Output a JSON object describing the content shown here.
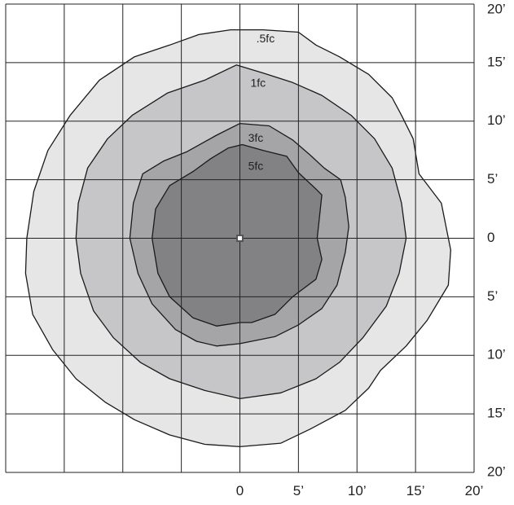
{
  "chart_data": {
    "type": "contour",
    "title": "",
    "xlabel": "",
    "ylabel": "",
    "xlim": [
      -20,
      20
    ],
    "ylim": [
      -20,
      20
    ],
    "grid": true,
    "grid_step": 5,
    "x_tick_labels": [
      {
        "value": 0,
        "label": "0"
      },
      {
        "value": 5,
        "label": "5’"
      },
      {
        "value": 10,
        "label": "10’"
      },
      {
        "value": 15,
        "label": "15’"
      },
      {
        "value": 20,
        "label": "20’"
      }
    ],
    "y_tick_labels": [
      {
        "value": 20,
        "label": "20’"
      },
      {
        "value": 15,
        "label": "15’"
      },
      {
        "value": 10,
        "label": "10’"
      },
      {
        "value": 5,
        "label": "5’"
      },
      {
        "value": 0,
        "label": "0"
      },
      {
        "value": -5,
        "label": "5’"
      },
      {
        "value": -10,
        "label": "10’"
      },
      {
        "value": -15,
        "label": "15’"
      },
      {
        "value": -20,
        "label": "20’"
      }
    ],
    "fixture_location": [
      0,
      0
    ],
    "colors": {
      "grid": "#222222",
      "outline": "#1a1a1a",
      "fixture": "#555555",
      "background": "#ffffff"
    },
    "contours": [
      {
        "label": ".5fc",
        "label_at": [
          1.4,
          17.0
        ],
        "fill": "#e6e6e7",
        "points": [
          [
            -0.8,
            17.8
          ],
          [
            2,
            17.8
          ],
          [
            5,
            17.6
          ],
          [
            6.5,
            16.5
          ],
          [
            8.5,
            15.5
          ],
          [
            11,
            14
          ],
          [
            13,
            12
          ],
          [
            13.8,
            10.5
          ],
          [
            14.8,
            8.5
          ],
          [
            15.3,
            5.5
          ],
          [
            17.2,
            3
          ],
          [
            18,
            -1
          ],
          [
            17.8,
            -4
          ],
          [
            16,
            -7
          ],
          [
            14.2,
            -9.2
          ],
          [
            12,
            -11.3
          ],
          [
            11,
            -12.8
          ],
          [
            9,
            -14.7
          ],
          [
            6,
            -16.3
          ],
          [
            3.5,
            -17.5
          ],
          [
            0,
            -17.8
          ],
          [
            -3,
            -17.6
          ],
          [
            -6,
            -16.8
          ],
          [
            -9,
            -15.5
          ],
          [
            -11.5,
            -14
          ],
          [
            -14,
            -12
          ],
          [
            -16,
            -9.5
          ],
          [
            -17.7,
            -6.5
          ],
          [
            -18.3,
            -3
          ],
          [
            -18.2,
            0
          ],
          [
            -17.6,
            4
          ],
          [
            -16.4,
            7.5
          ],
          [
            -14.5,
            10.5
          ],
          [
            -12,
            13.5
          ],
          [
            -9,
            15.5
          ],
          [
            -6,
            16.5
          ],
          [
            -3.5,
            17.4
          ]
        ]
      },
      {
        "label": "1fc",
        "label_at": [
          0.9,
          13.2
        ],
        "fill": "#c6c6c8",
        "points": [
          [
            -3,
            13.5
          ],
          [
            -0.3,
            14.8
          ],
          [
            2,
            14.1
          ],
          [
            4.5,
            13.3
          ],
          [
            7,
            12.2
          ],
          [
            9.5,
            10.5
          ],
          [
            11.5,
            8.5
          ],
          [
            13,
            6
          ],
          [
            13.8,
            3
          ],
          [
            14.2,
            0
          ],
          [
            13.6,
            -3
          ],
          [
            12.5,
            -5.8
          ],
          [
            10.5,
            -8.5
          ],
          [
            8.5,
            -10.6
          ],
          [
            6.5,
            -12
          ],
          [
            3.5,
            -13.2
          ],
          [
            0,
            -13.7
          ],
          [
            -3,
            -13
          ],
          [
            -6,
            -12
          ],
          [
            -8.5,
            -10.6
          ],
          [
            -10.8,
            -8.5
          ],
          [
            -12.5,
            -6.2
          ],
          [
            -13.6,
            -3
          ],
          [
            -14,
            0
          ],
          [
            -13.8,
            3
          ],
          [
            -13,
            6
          ],
          [
            -11.3,
            8.5
          ],
          [
            -9.2,
            10.5
          ],
          [
            -6.2,
            12.4
          ]
        ]
      },
      {
        "label": "3fc",
        "label_at": [
          0.7,
          8.5
        ],
        "fill": "#a5a5a8",
        "points": [
          [
            -4.5,
            7.4
          ],
          [
            -2,
            8.8
          ],
          [
            0,
            9.8
          ],
          [
            2.5,
            9.6
          ],
          [
            4.5,
            8.4
          ],
          [
            6,
            7.1
          ],
          [
            7.2,
            6
          ],
          [
            8.6,
            5
          ],
          [
            9,
            3.5
          ],
          [
            9.3,
            1
          ],
          [
            9,
            -1.2
          ],
          [
            8.3,
            -4
          ],
          [
            7,
            -6
          ],
          [
            5,
            -7.4
          ],
          [
            3,
            -8.4
          ],
          [
            0,
            -9
          ],
          [
            -2,
            -9.2
          ],
          [
            -3.7,
            -8.8
          ],
          [
            -5.5,
            -7.8
          ],
          [
            -7.5,
            -5.6
          ],
          [
            -8.7,
            -3
          ],
          [
            -9.4,
            0
          ],
          [
            -9.1,
            3
          ],
          [
            -8.3,
            5.5
          ],
          [
            -6.5,
            6.6
          ]
        ]
      },
      {
        "label": "5fc",
        "label_at": [
          0.7,
          6.1
        ],
        "fill": "#828285",
        "points": [
          [
            -4,
            5.7
          ],
          [
            -2.5,
            6.8
          ],
          [
            -1,
            7.7
          ],
          [
            0.2,
            8
          ],
          [
            2,
            7.5
          ],
          [
            4,
            7
          ],
          [
            5,
            5.6
          ],
          [
            6.5,
            4.2
          ],
          [
            7,
            3.7
          ],
          [
            6.6,
            0
          ],
          [
            7,
            -1.8
          ],
          [
            6.5,
            -3.5
          ],
          [
            4.5,
            -5
          ],
          [
            3,
            -6.5
          ],
          [
            1,
            -7.2
          ],
          [
            0,
            -7.2
          ],
          [
            -2,
            -7.5
          ],
          [
            -4,
            -6.8
          ],
          [
            -6,
            -5
          ],
          [
            -7,
            -3
          ],
          [
            -7.5,
            0
          ],
          [
            -7.2,
            2.5
          ],
          [
            -6,
            4.5
          ]
        ]
      }
    ]
  }
}
